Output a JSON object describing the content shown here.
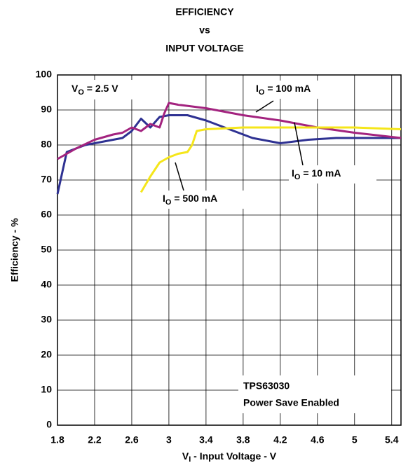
{
  "chart_data": {
    "type": "line",
    "title": [
      "EFFICIENCY",
      "vs",
      "INPUT VOLTAGE"
    ],
    "xlabel": [
      "V",
      "I",
      " - Input Voltage - V"
    ],
    "ylabel": "Efficiency - %",
    "xlim": [
      1.8,
      5.5
    ],
    "ylim": [
      0,
      100
    ],
    "xticks": [
      1.8,
      2.2,
      2.6,
      3,
      3.4,
      3.8,
      4.2,
      4.6,
      5,
      5.4
    ],
    "yticks": [
      0,
      10,
      20,
      30,
      40,
      50,
      60,
      70,
      80,
      90,
      100
    ],
    "grid": true,
    "series": [
      {
        "label": [
          "I",
          "O",
          " = 10 mA"
        ],
        "color": "#2e3192",
        "x": [
          1.8,
          1.9,
          2.1,
          2.3,
          2.5,
          2.6,
          2.7,
          2.8,
          2.9,
          3.0,
          3.2,
          3.4,
          3.6,
          3.9,
          4.2,
          4.5,
          4.8,
          5.2,
          5.5
        ],
        "values": [
          66,
          78,
          80,
          81,
          82,
          84,
          87.5,
          85,
          88,
          88.5,
          88.5,
          87,
          85,
          82,
          80.5,
          81.5,
          82,
          82,
          82
        ]
      },
      {
        "label": [
          "I",
          "O",
          " = 100 mA"
        ],
        "color": "#a3237f",
        "x": [
          1.8,
          2.0,
          2.2,
          2.4,
          2.5,
          2.6,
          2.7,
          2.8,
          2.9,
          2.95,
          3.0,
          3.1,
          3.4,
          3.8,
          4.2,
          4.6,
          5.0,
          5.5
        ],
        "values": [
          76,
          79,
          81.5,
          83,
          83.5,
          85,
          84,
          86,
          85,
          89,
          92,
          91.5,
          90.5,
          88.5,
          87,
          85,
          83.5,
          82
        ]
      },
      {
        "label": [
          "I",
          "O",
          " = 500 mA"
        ],
        "color": "#f5e61a",
        "x": [
          2.7,
          2.8,
          2.9,
          3.0,
          3.1,
          3.2,
          3.25,
          3.3,
          3.4,
          3.8,
          4.2,
          4.6,
          5.0,
          5.5
        ],
        "values": [
          66.5,
          71,
          75,
          76.5,
          77.5,
          78,
          80,
          84,
          84.5,
          85,
          85,
          85,
          85,
          84.5
        ]
      }
    ],
    "annotations": [
      {
        "parts": [
          "V",
          "O",
          " = 2.5 V"
        ]
      },
      {
        "lines": [
          "TPS63030",
          "Power Save Enabled"
        ]
      }
    ]
  }
}
